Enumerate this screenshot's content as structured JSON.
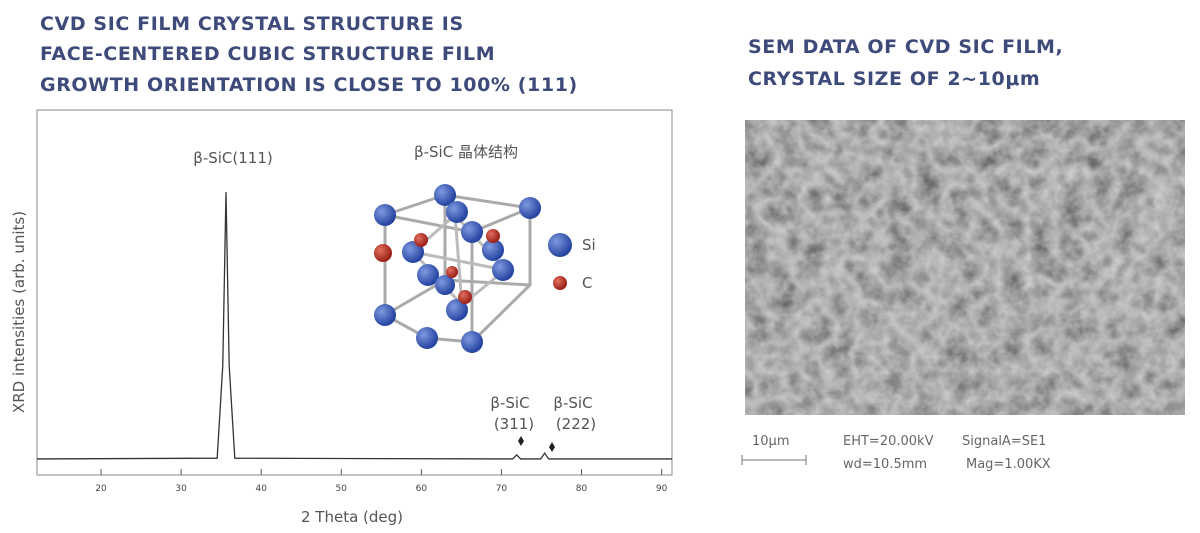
{
  "chart_data": {
    "type": "line",
    "title": [
      "CVD SIC FILM CRYSTAL STRUCTURE IS",
      "FACE-CENTERED CUBIC STRUCTURE FILM",
      "GROWTH ORIENTATION IS CLOSE TO 100% (111)"
    ],
    "x_label": "2 Theta (deg)",
    "y_label": "XRD intensities (arb. units)",
    "xlim": [
      12,
      91.3
    ],
    "ylim": [
      0,
      100
    ],
    "xticks": [
      20,
      30,
      40,
      50,
      60,
      70,
      80,
      90
    ],
    "series": [
      {
        "color": "#333333",
        "x": [
          12,
          34.5,
          35.2,
          35.6,
          36.0,
          36.7,
          71.4,
          71.9,
          72.4,
          74.9,
          75.4,
          75.9,
          91.3
        ],
        "values": [
          4.4,
          4.6,
          30,
          77.5,
          30,
          4.6,
          4.4,
          5.5,
          4.4,
          4.4,
          6,
          4.4,
          4.4
        ]
      }
    ],
    "annotations": [
      "β-SiC(111)",
      "β-SiC",
      "(311)",
      "β-SiC",
      "(222)"
    ],
    "inset_title": "β-SiC 晶体结构",
    "inset_legend": [
      "Si",
      "C"
    ]
  },
  "sem": {
    "title": [
      "SEM DATA OF CVD SIC FILM,",
      "CRYSTAL SIZE OF 2~10μm"
    ],
    "scale_bar": "10μm",
    "info": [
      "EHT=20.00kV",
      "SignalA=SE1",
      "wd=10.5mm",
      "Mag=1.00KX"
    ]
  }
}
